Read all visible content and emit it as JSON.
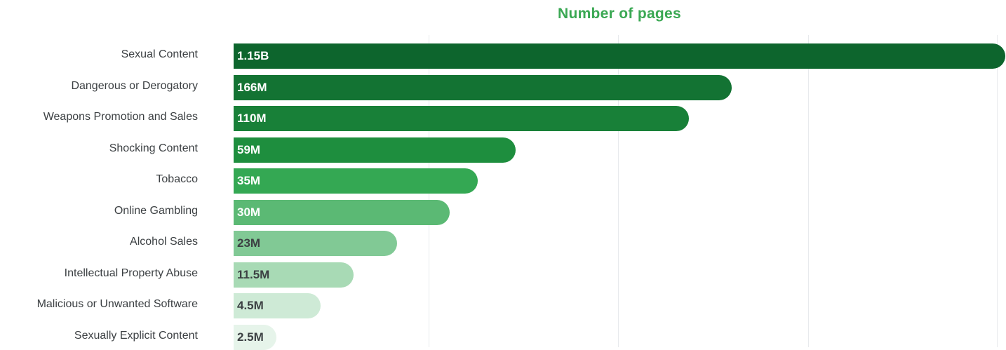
{
  "chart_data": {
    "type": "bar",
    "orientation": "horizontal",
    "title": "Number of pages",
    "title_color": "#3aa853",
    "categories": [
      "Sexual Content",
      "Dangerous or Derogatory",
      "Weapons Promotion and Sales",
      "Shocking Content",
      "Tobacco",
      "Online Gambling",
      "Alcohol Sales",
      "Intellectual Property Abuse",
      "Malicious or Unwanted Software",
      "Sexually Explicit Content"
    ],
    "value_labels": [
      "1.15B",
      "166M",
      "110M",
      "59M",
      "35M",
      "30M",
      "23M",
      "11.5M",
      "4.5M",
      "2.5M"
    ],
    "relative_lengths": [
      1.0,
      0.645,
      0.59,
      0.365,
      0.316,
      0.28,
      0.212,
      0.155,
      0.113,
      0.055
    ],
    "bar_colors": [
      "#0d652d",
      "#137333",
      "#188038",
      "#1e8e3e",
      "#34a853",
      "#5bb974",
      "#81c995",
      "#a8dab5",
      "#ceead6",
      "#e6f4ea"
    ],
    "value_label_colors": [
      "#ffffff",
      "#ffffff",
      "#ffffff",
      "#ffffff",
      "#ffffff",
      "#ffffff",
      "#3c4043",
      "#3c4043",
      "#3c4043",
      "#3c4043"
    ],
    "grid": true,
    "xlabel": "",
    "ylabel": ""
  }
}
